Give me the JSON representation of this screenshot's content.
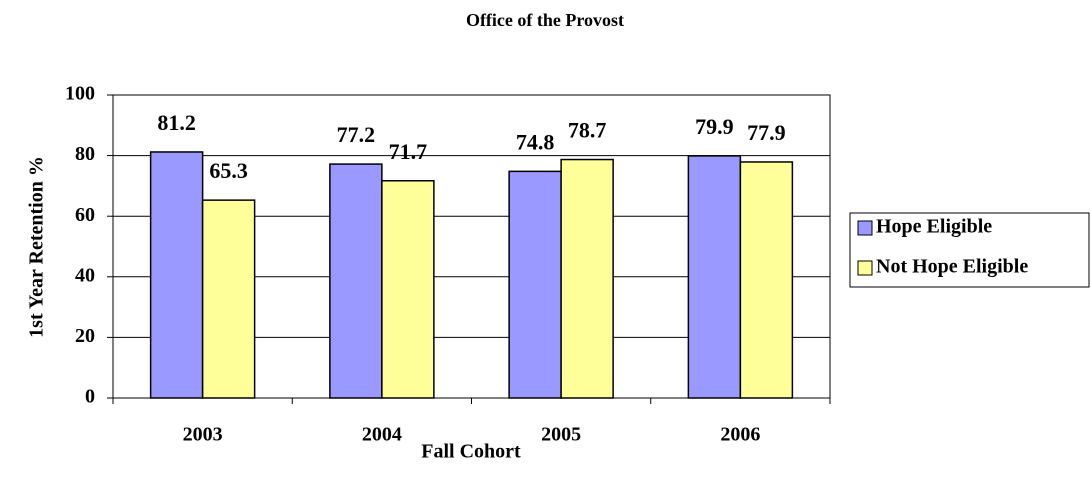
{
  "chart_data": {
    "type": "bar",
    "title": "Office of the Provost",
    "x_label": "Fall Cohort",
    "y_label": "1st Year Retention %",
    "categories": [
      "2003",
      "2004",
      "2005",
      "2006"
    ],
    "series": [
      {
        "name": "Hope Eligible",
        "color": "#9999ff",
        "values": [
          81.2,
          77.2,
          74.8,
          79.9
        ]
      },
      {
        "name": "Not Hope Eligible",
        "color": "#ffff99",
        "values": [
          65.3,
          71.7,
          78.7,
          77.9
        ]
      }
    ],
    "ylim": [
      0,
      100
    ],
    "yticks": [
      0,
      20,
      40,
      60,
      80,
      100
    ],
    "grid": true,
    "legend": "right"
  }
}
